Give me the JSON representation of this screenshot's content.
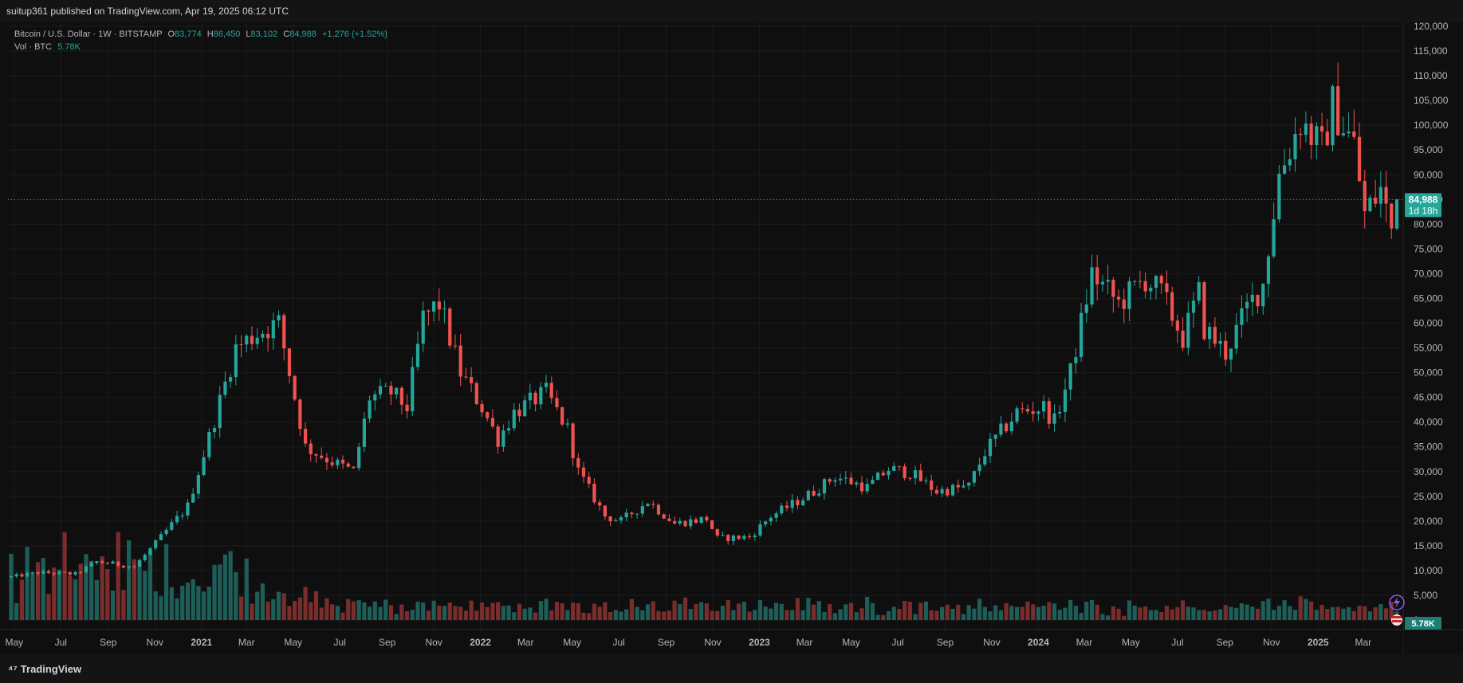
{
  "header": {
    "published": "suitup361 published on TradingView.com, Apr 19, 2025 06:12 UTC"
  },
  "legend": {
    "symbol": "Bitcoin / U.S. Dollar · 1W · BITSTAMP",
    "o_label": "O",
    "o_value": "83,774",
    "h_label": "H",
    "h_value": "86,450",
    "l_label": "L",
    "l_value": "83,102",
    "c_label": "C",
    "c_value": "84,988",
    "change": "+1,276 (+1.52%)",
    "vol_label": "Vol · BTC",
    "vol_value": "5.78K"
  },
  "price_badge": {
    "price": "84,988",
    "countdown": "1d 18h"
  },
  "vol_badge": "5.78K",
  "footer": {
    "brand": "TradingView"
  },
  "colors": {
    "up": "#26a69a",
    "down": "#ef5350",
    "up_vol": "#1e5e59",
    "down_vol": "#7b2d2d",
    "background": "#0f0f0f",
    "grid": "#1c1c1c"
  },
  "icons": [
    "lightning-icon",
    "flag-icon"
  ],
  "chart_data": {
    "type": "candlestick",
    "symbol": "BTCUSD",
    "exchange": "BITSTAMP",
    "interval": "1W",
    "yaxis": {
      "ticks": [
        "120,000",
        "115,000",
        "110,000",
        "105,000",
        "100,000",
        "95,000",
        "90,000",
        "85,000",
        "80,000",
        "75,000",
        "70,000",
        "65,000",
        "60,000",
        "55,000",
        "50,000",
        "45,000",
        "40,000",
        "35,000",
        "30,000",
        "25,000",
        "20,000",
        "15,000",
        "10,000",
        "5,000",
        "0"
      ],
      "range": [
        0,
        120000
      ]
    },
    "xaxis": {
      "ticks": [
        "May",
        "Jul",
        "Sep",
        "Nov",
        "2021",
        "Mar",
        "May",
        "Jul",
        "Sep",
        "Nov",
        "2022",
        "Mar",
        "May",
        "Jul",
        "Sep",
        "Nov",
        "2023",
        "Mar",
        "May",
        "Jul",
        "Sep",
        "Nov",
        "2024",
        "Mar",
        "May",
        "Jul",
        "Sep",
        "Nov",
        "2025",
        "Mar"
      ],
      "bold_ticks": [
        "2021",
        "2022",
        "2023",
        "2024",
        "2025"
      ]
    },
    "last_price": 84988,
    "series": [
      {
        "name": "price",
        "anchors": [
          [
            "2020-04-27",
            8700
          ],
          [
            "2020-06-01",
            9600
          ],
          [
            "2020-07-20",
            9300
          ],
          [
            "2020-08-17",
            11800
          ],
          [
            "2020-10-05",
            10800
          ],
          [
            "2020-11-02",
            15500
          ],
          [
            "2020-12-14",
            23000
          ],
          [
            "2021-01-11",
            37000
          ],
          [
            "2021-02-15",
            55000
          ],
          [
            "2021-03-15",
            58000
          ],
          [
            "2021-04-12",
            60000
          ],
          [
            "2021-05-17",
            35000
          ],
          [
            "2021-06-21",
            32000
          ],
          [
            "2021-07-19",
            30000
          ],
          [
            "2021-08-09",
            45000
          ],
          [
            "2021-09-06",
            46000
          ],
          [
            "2021-09-27",
            43000
          ],
          [
            "2021-10-18",
            61000
          ],
          [
            "2021-11-08",
            64000
          ],
          [
            "2021-12-06",
            50000
          ],
          [
            "2022-01-03",
            43000
          ],
          [
            "2022-01-24",
            36500
          ],
          [
            "2022-02-14",
            42000
          ],
          [
            "2022-03-28",
            46000
          ],
          [
            "2022-04-25",
            38500
          ],
          [
            "2022-05-09",
            30000
          ],
          [
            "2022-06-13",
            21000
          ],
          [
            "2022-07-04",
            20000
          ],
          [
            "2022-08-08",
            24000
          ],
          [
            "2022-09-12",
            19500
          ],
          [
            "2022-10-24",
            20500
          ],
          [
            "2022-11-07",
            16500
          ],
          [
            "2022-12-19",
            16800
          ],
          [
            "2023-01-16",
            21000
          ],
          [
            "2023-02-20",
            24000
          ],
          [
            "2023-03-13",
            26000
          ],
          [
            "2023-04-10",
            29000
          ],
          [
            "2023-05-22",
            26800
          ],
          [
            "2023-06-19",
            30500
          ],
          [
            "2023-07-17",
            29800
          ],
          [
            "2023-08-21",
            26000
          ],
          [
            "2023-10-02",
            27000
          ],
          [
            "2023-10-23",
            34000
          ],
          [
            "2023-12-04",
            42000
          ],
          [
            "2024-01-08",
            43000
          ],
          [
            "2024-01-22",
            40000
          ],
          [
            "2024-02-12",
            50000
          ],
          [
            "2024-03-11",
            70000
          ],
          [
            "2024-04-15",
            64000
          ],
          [
            "2024-05-20",
            69000
          ],
          [
            "2024-06-10",
            66000
          ],
          [
            "2024-07-08",
            57000
          ],
          [
            "2024-07-29",
            66000
          ],
          [
            "2024-08-05",
            59000
          ],
          [
            "2024-09-02",
            54000
          ],
          [
            "2024-09-30",
            63000
          ],
          [
            "2024-10-21",
            68000
          ],
          [
            "2024-11-11",
            90000
          ],
          [
            "2024-12-09",
            101000
          ],
          [
            "2025-01-06",
            95000
          ],
          [
            "2025-01-20",
            104000
          ],
          [
            "2025-02-17",
            96000
          ],
          [
            "2025-03-03",
            82000
          ],
          [
            "2025-03-24",
            87000
          ],
          [
            "2025-04-07",
            79000
          ],
          [
            "2025-04-14",
            84988
          ]
        ]
      }
    ]
  }
}
